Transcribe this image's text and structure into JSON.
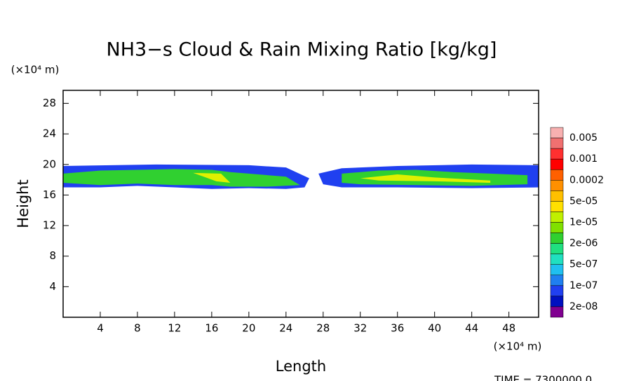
{
  "chart_data": {
    "type": "contour",
    "title": "NH3−s Cloud & Rain Mixing Ratio [kg/kg]",
    "x_label": "Length",
    "y_label": "Height",
    "x_unit": "(×10⁴ m)",
    "y_unit": "(×10⁴ m)",
    "footer": "TIME = 7300000.0",
    "xlim": [
      0,
      51.2
    ],
    "ylim": [
      0,
      29.7
    ],
    "xticks": [
      4,
      8,
      12,
      16,
      20,
      24,
      28,
      32,
      36,
      40,
      44,
      48
    ],
    "yticks": [
      4,
      8,
      12,
      16,
      20,
      24,
      28
    ],
    "colorbar": {
      "colors": [
        "#f8b0b0",
        "#f07070",
        "#ff3030",
        "#ff0000",
        "#ff6000",
        "#ff9000",
        "#ffc000",
        "#ffe000",
        "#c0f000",
        "#80e000",
        "#30d030",
        "#20e080",
        "#20e0c0",
        "#20c0f0",
        "#2080f0",
        "#2040f0",
        "#0010c0",
        "#800090"
      ],
      "levels": [
        0.005,
        0.001,
        0.0002,
        {
          "value": 5e-05,
          "label": "5e-05"
        },
        {
          "value": 1e-05,
          "label": "1e-05"
        },
        {
          "value": 2e-06,
          "label": "2e-06"
        },
        {
          "value": 5e-07,
          "label": "5e-07"
        },
        {
          "value": 1e-07,
          "label": "1e-07"
        },
        {
          "value": 2e-08,
          "label": "2e-08"
        }
      ]
    },
    "contours": [
      {
        "color": "#2040f0",
        "x": [
          0,
          10,
          20,
          24,
          26.5,
          26,
          24,
          20,
          16,
          12,
          8,
          4,
          0
        ],
        "y": [
          19.8,
          20,
          19.9,
          19.6,
          18.2,
          17.0,
          16.8,
          16.9,
          16.8,
          17.0,
          17.2,
          17.0,
          17.0
        ]
      },
      {
        "color": "#2040f0",
        "x": [
          27.5,
          30,
          36,
          44,
          51.2,
          51.2,
          44,
          36,
          30,
          28
        ],
        "y": [
          18.8,
          19.5,
          19.8,
          20,
          19.9,
          17.0,
          16.9,
          17.0,
          17.0,
          17.4
        ]
      },
      {
        "color": "#30d030",
        "x": [
          0,
          4,
          8,
          12,
          16,
          18,
          20,
          24,
          25.5,
          22,
          18,
          16,
          12,
          8,
          4,
          0
        ],
        "y": [
          18.8,
          19.2,
          19.3,
          19.4,
          19.3,
          19.0,
          18.8,
          18.4,
          17.3,
          17.1,
          17.1,
          17.3,
          17.3,
          17.5,
          17.3,
          17.6
        ]
      },
      {
        "color": "#30d030",
        "x": [
          30,
          34,
          38,
          42,
          46,
          50,
          50,
          44,
          38,
          32,
          30
        ],
        "y": [
          18.8,
          19.2,
          19.3,
          19.0,
          18.8,
          18.6,
          17.4,
          17.2,
          17.3,
          17.4,
          17.6
        ]
      },
      {
        "color": "#e0f000",
        "x": [
          14,
          17,
          18,
          16.5
        ],
        "y": [
          18.9,
          18.8,
          17.6,
          17.8
        ]
      },
      {
        "color": "#e0f000",
        "x": [
          32,
          36,
          40,
          46,
          46,
          40,
          34
        ],
        "y": [
          18.2,
          18.7,
          18.3,
          17.9,
          17.6,
          17.8,
          17.9
        ]
      }
    ]
  }
}
